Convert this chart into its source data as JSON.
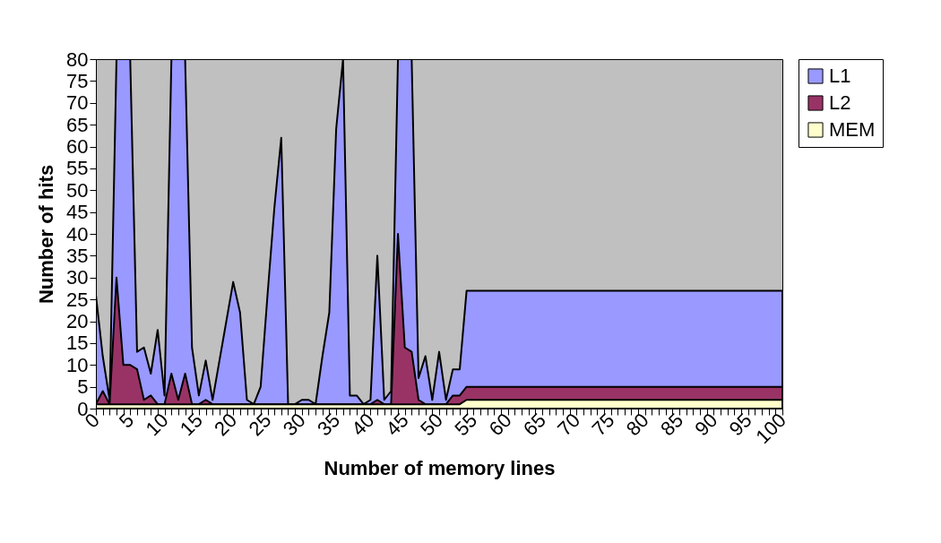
{
  "chart_data": {
    "type": "area",
    "xlabel": "Number of memory lines",
    "ylabel": "Number of hits",
    "x": [
      0,
      1,
      2,
      3,
      4,
      5,
      6,
      7,
      8,
      9,
      10,
      11,
      12,
      13,
      14,
      15,
      16,
      17,
      18,
      19,
      20,
      21,
      22,
      23,
      24,
      25,
      26,
      27,
      28,
      29,
      30,
      31,
      32,
      33,
      34,
      35,
      36,
      37,
      38,
      39,
      40,
      41,
      42,
      43,
      44,
      45,
      46,
      47,
      48,
      49,
      50,
      51,
      52,
      53,
      54,
      55,
      56,
      57,
      58,
      59,
      60,
      61,
      62,
      63,
      64,
      65,
      66,
      67,
      68,
      69,
      70,
      71,
      72,
      73,
      74,
      75,
      76,
      77,
      78,
      79,
      80,
      81,
      82,
      83,
      84,
      85,
      86,
      87,
      88,
      89,
      90,
      91,
      92,
      93,
      94,
      95,
      96,
      97,
      98,
      99,
      100
    ],
    "series": [
      {
        "name": "L1",
        "color": "#9999ff",
        "values": [
          26,
          12,
          2,
          80,
          80,
          80,
          13,
          14,
          8,
          18,
          3,
          80,
          80,
          80,
          14,
          3,
          11,
          2,
          11,
          20,
          29,
          22,
          2,
          1,
          5,
          26,
          46,
          62,
          1,
          1,
          2,
          2,
          1,
          12,
          22,
          64,
          80,
          3,
          3,
          1,
          2,
          35,
          2,
          4,
          80,
          80,
          80,
          7,
          12,
          2,
          13,
          2,
          9,
          9,
          27,
          27,
          27,
          27,
          27,
          27,
          27,
          27,
          27,
          27,
          27,
          27,
          27,
          27,
          27,
          27,
          27,
          27,
          27,
          27,
          27,
          27,
          27,
          27,
          27,
          27,
          27,
          27,
          27,
          27,
          27,
          27,
          27,
          27,
          27,
          27,
          27,
          27,
          27,
          27,
          27,
          27,
          27,
          27,
          27,
          27,
          27
        ]
      },
      {
        "name": "L2",
        "color": "#993366",
        "values": [
          1,
          4,
          1,
          30,
          10,
          10,
          9,
          2,
          3,
          1,
          1,
          8,
          2,
          8,
          1,
          1,
          2,
          1,
          1,
          1,
          1,
          1,
          1,
          1,
          1,
          1,
          1,
          1,
          1,
          1,
          1,
          1,
          1,
          1,
          1,
          1,
          1,
          1,
          1,
          1,
          1,
          2,
          1,
          1,
          40,
          14,
          13,
          2,
          1,
          1,
          1,
          1,
          3,
          3,
          5,
          5,
          5,
          5,
          5,
          5,
          5,
          5,
          5,
          5,
          5,
          5,
          5,
          5,
          5,
          5,
          5,
          5,
          5,
          5,
          5,
          5,
          5,
          5,
          5,
          5,
          5,
          5,
          5,
          5,
          5,
          5,
          5,
          5,
          5,
          5,
          5,
          5,
          5,
          5,
          5,
          5,
          5,
          5,
          5,
          5,
          5
        ]
      },
      {
        "name": "MEM",
        "color": "#ffffcc",
        "values": [
          1,
          1,
          1,
          1,
          1,
          1,
          1,
          1,
          1,
          1,
          1,
          1,
          1,
          1,
          1,
          1,
          1,
          1,
          1,
          1,
          1,
          1,
          1,
          1,
          1,
          1,
          1,
          1,
          1,
          1,
          1,
          1,
          1,
          1,
          1,
          1,
          1,
          1,
          1,
          1,
          1,
          1,
          1,
          1,
          1,
          1,
          1,
          1,
          1,
          1,
          1,
          1,
          1,
          1,
          2,
          2,
          2,
          2,
          2,
          2,
          2,
          2,
          2,
          2,
          2,
          2,
          2,
          2,
          2,
          2,
          2,
          2,
          2,
          2,
          2,
          2,
          2,
          2,
          2,
          2,
          2,
          2,
          2,
          2,
          2,
          2,
          2,
          2,
          2,
          2,
          2,
          2,
          2,
          2,
          2,
          2,
          2,
          2,
          2,
          2,
          2
        ]
      }
    ],
    "xlim": [
      0,
      100
    ],
    "xticks": [
      0,
      {
        "value": 1,
        "label": null
      },
      {
        "value": 2,
        "label": null
      },
      {
        "value": 3,
        "label": null
      },
      {
        "value": 4,
        "label": null
      },
      5,
      {
        "value": 6,
        "label": null
      },
      {
        "value": 7,
        "label": null
      },
      {
        "value": 8,
        "label": null
      },
      {
        "value": 9,
        "label": null
      },
      10,
      {
        "value": 11,
        "label": null
      },
      {
        "value": 12,
        "label": null
      },
      {
        "value": 13,
        "label": null
      },
      {
        "value": 14,
        "label": null
      },
      15,
      {
        "value": 16,
        "label": null
      },
      {
        "value": 17,
        "label": null
      },
      {
        "value": 18,
        "label": null
      },
      {
        "value": 19,
        "label": null
      },
      20,
      {
        "value": 21,
        "label": null
      },
      {
        "value": 22,
        "label": null
      },
      {
        "value": 23,
        "label": null
      },
      {
        "value": 24,
        "label": null
      },
      25,
      {
        "value": 26,
        "label": null
      },
      {
        "value": 27,
        "label": null
      },
      {
        "value": 28,
        "label": null
      },
      {
        "value": 29,
        "label": null
      },
      30,
      {
        "value": 31,
        "label": null
      },
      {
        "value": 32,
        "label": null
      },
      {
        "value": 33,
        "label": null
      },
      {
        "value": 34,
        "label": null
      },
      35,
      {
        "value": 36,
        "label": null
      },
      {
        "value": 37,
        "label": null
      },
      {
        "value": 38,
        "label": null
      },
      {
        "value": 39,
        "label": null
      },
      40,
      {
        "value": 41,
        "label": null
      },
      {
        "value": 42,
        "label": null
      },
      {
        "value": 43,
        "label": null
      },
      {
        "value": 44,
        "label": null
      },
      45,
      {
        "value": 46,
        "label": null
      },
      {
        "value": 47,
        "label": null
      },
      {
        "value": 48,
        "label": null
      },
      {
        "value": 49,
        "label": null
      },
      50,
      {
        "value": 51,
        "label": null
      },
      {
        "value": 52,
        "label": null
      },
      {
        "value": 53,
        "label": null
      },
      {
        "value": 54,
        "label": null
      },
      55,
      {
        "value": 56,
        "label": null
      },
      {
        "value": 57,
        "label": null
      },
      {
        "value": 58,
        "label": null
      },
      {
        "value": 59,
        "label": null
      },
      60,
      {
        "value": 61,
        "label": null
      },
      {
        "value": 62,
        "label": null
      },
      {
        "value": 63,
        "label": null
      },
      {
        "value": 64,
        "label": null
      },
      65,
      {
        "value": 66,
        "label": null
      },
      {
        "value": 67,
        "label": null
      },
      {
        "value": 68,
        "label": null
      },
      {
        "value": 69,
        "label": null
      },
      70,
      {
        "value": 71,
        "label": null
      },
      {
        "value": 72,
        "label": null
      },
      {
        "value": 73,
        "label": null
      },
      {
        "value": 74,
        "label": null
      },
      75,
      {
        "value": 76,
        "label": null
      },
      {
        "value": 77,
        "label": null
      },
      {
        "value": 78,
        "label": null
      },
      {
        "value": 79,
        "label": null
      },
      80,
      {
        "value": 81,
        "label": null
      },
      {
        "value": 82,
        "label": null
      },
      {
        "value": 83,
        "label": null
      },
      {
        "value": 84,
        "label": null
      },
      85,
      {
        "value": 86,
        "label": null
      },
      {
        "value": 87,
        "label": null
      },
      {
        "value": 88,
        "label": null
      },
      {
        "value": 89,
        "label": null
      },
      90,
      {
        "value": 91,
        "label": null
      },
      {
        "value": 92,
        "label": null
      },
      {
        "value": 93,
        "label": null
      },
      {
        "value": 94,
        "label": null
      },
      95,
      {
        "value": 96,
        "label": null
      },
      {
        "value": 97,
        "label": null
      },
      {
        "value": 98,
        "label": null
      },
      {
        "value": 99,
        "label": null
      },
      100
    ],
    "ylim": [
      0,
      80
    ],
    "yticks": [
      0,
      5,
      10,
      15,
      20,
      25,
      30,
      35,
      40,
      45,
      50,
      55,
      60,
      65,
      70,
      75,
      80
    ],
    "grid": false,
    "legend": "top right"
  }
}
